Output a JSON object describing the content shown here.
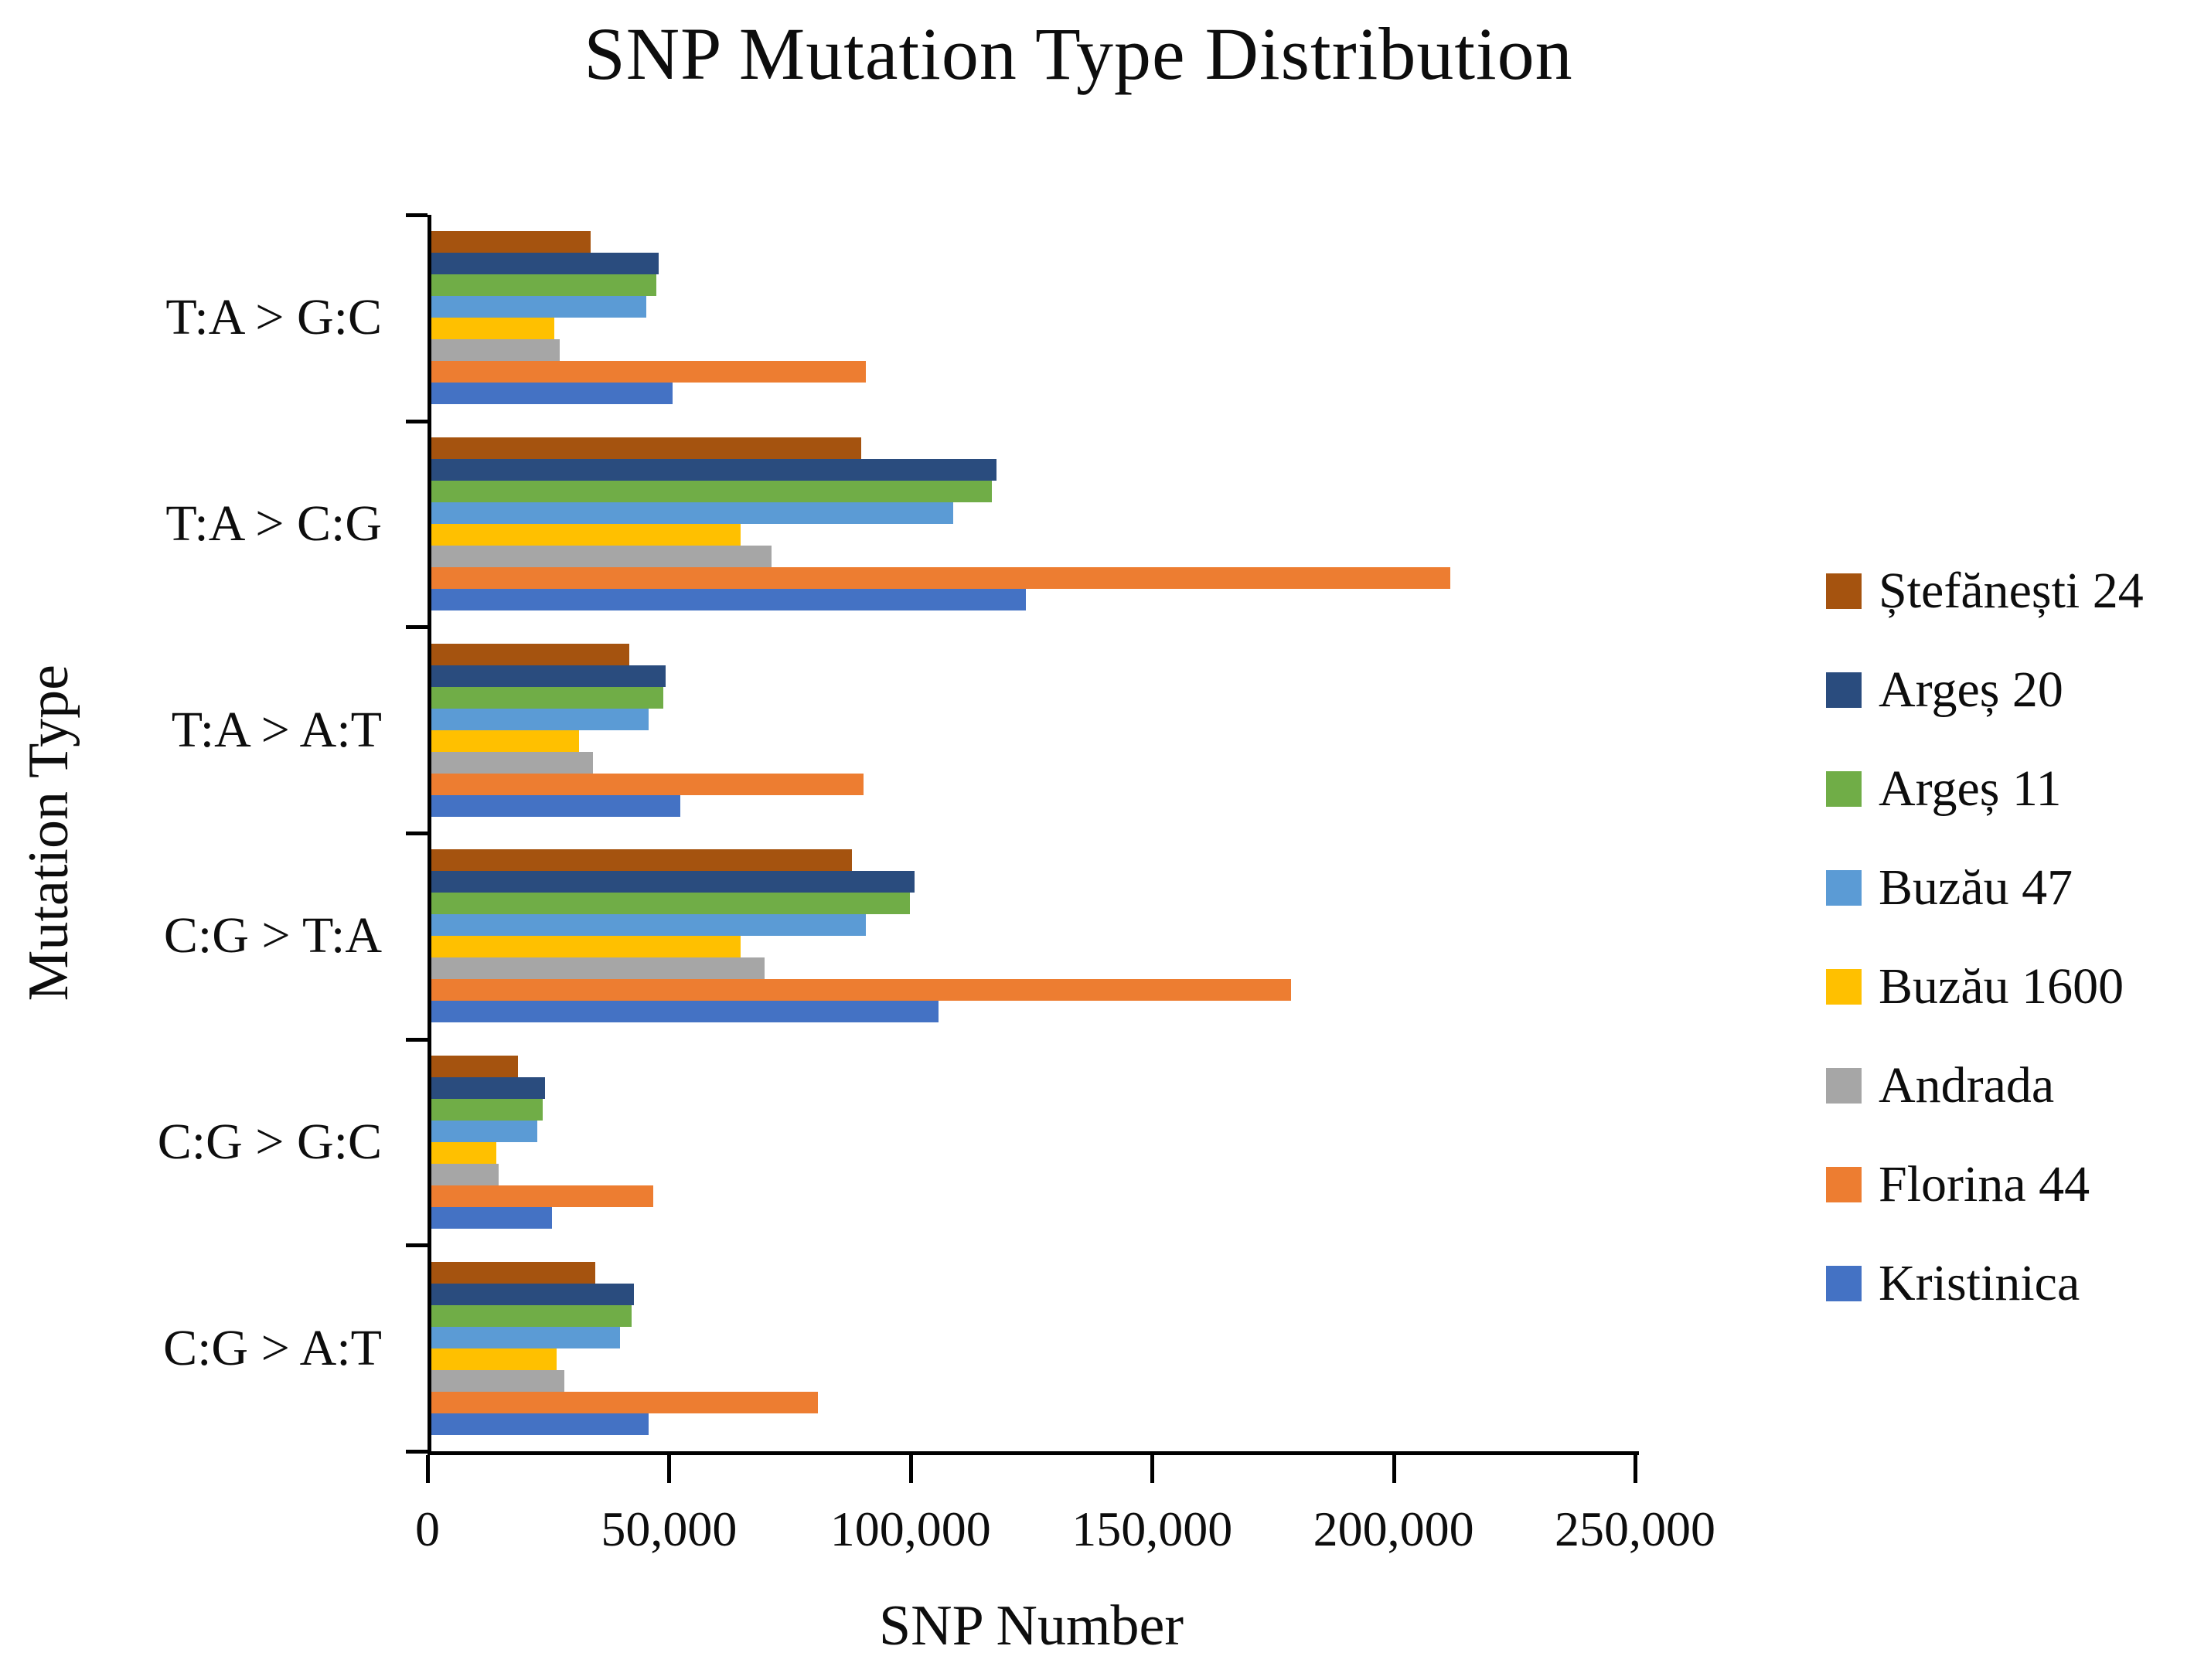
{
  "chart": {
    "title": "SNP Mutation Type Distribution",
    "xlabel": "SNP Number",
    "ylabel": "Mutation Type"
  },
  "chart_data": {
    "type": "bar",
    "orientation": "horizontal",
    "title": "SNP Mutation Type Distribution",
    "xlabel": "SNP Number",
    "ylabel": "Mutation Type",
    "grid": false,
    "legend_position": "right",
    "xlim": [
      0,
      250000
    ],
    "xticks": [
      0,
      50000,
      100000,
      150000,
      200000,
      250000
    ],
    "xtick_labels": [
      "0",
      "50,000",
      "100,000",
      "150,000",
      "200,000",
      "250,000"
    ],
    "categories": [
      "T:A > G:C",
      "T:A > C:G",
      "T:A > A:T",
      "C:G > T:A",
      "C:G > G:C",
      "C:G > A:T"
    ],
    "series": [
      {
        "name": "Ștefănești 24",
        "color": "#A5530F",
        "values": [
          33000,
          89000,
          41000,
          87000,
          18000,
          34000
        ]
      },
      {
        "name": "Argeș 20",
        "color": "#2A4C7E",
        "values": [
          47000,
          117000,
          48500,
          100000,
          23500,
          42000
        ]
      },
      {
        "name": "Argeș 11",
        "color": "#70AD47",
        "values": [
          46500,
          116000,
          48000,
          99000,
          23000,
          41500
        ]
      },
      {
        "name": "Buzău 47",
        "color": "#5B9BD5",
        "values": [
          44500,
          108000,
          45000,
          90000,
          22000,
          39000
        ]
      },
      {
        "name": "Buzău 1600",
        "color": "#FFC000",
        "values": [
          25500,
          64000,
          30500,
          64000,
          13500,
          26000
        ]
      },
      {
        "name": "Andrada",
        "color": "#A6A6A6",
        "values": [
          26500,
          70500,
          33500,
          69000,
          14000,
          27500
        ]
      },
      {
        "name": "Florina 44",
        "color": "#ED7D31",
        "values": [
          90000,
          211000,
          89500,
          178000,
          46000,
          80000
        ]
      },
      {
        "name": "Kristinica",
        "color": "#4472C4",
        "values": [
          50000,
          123000,
          51500,
          105000,
          25000,
          45000
        ]
      }
    ]
  }
}
